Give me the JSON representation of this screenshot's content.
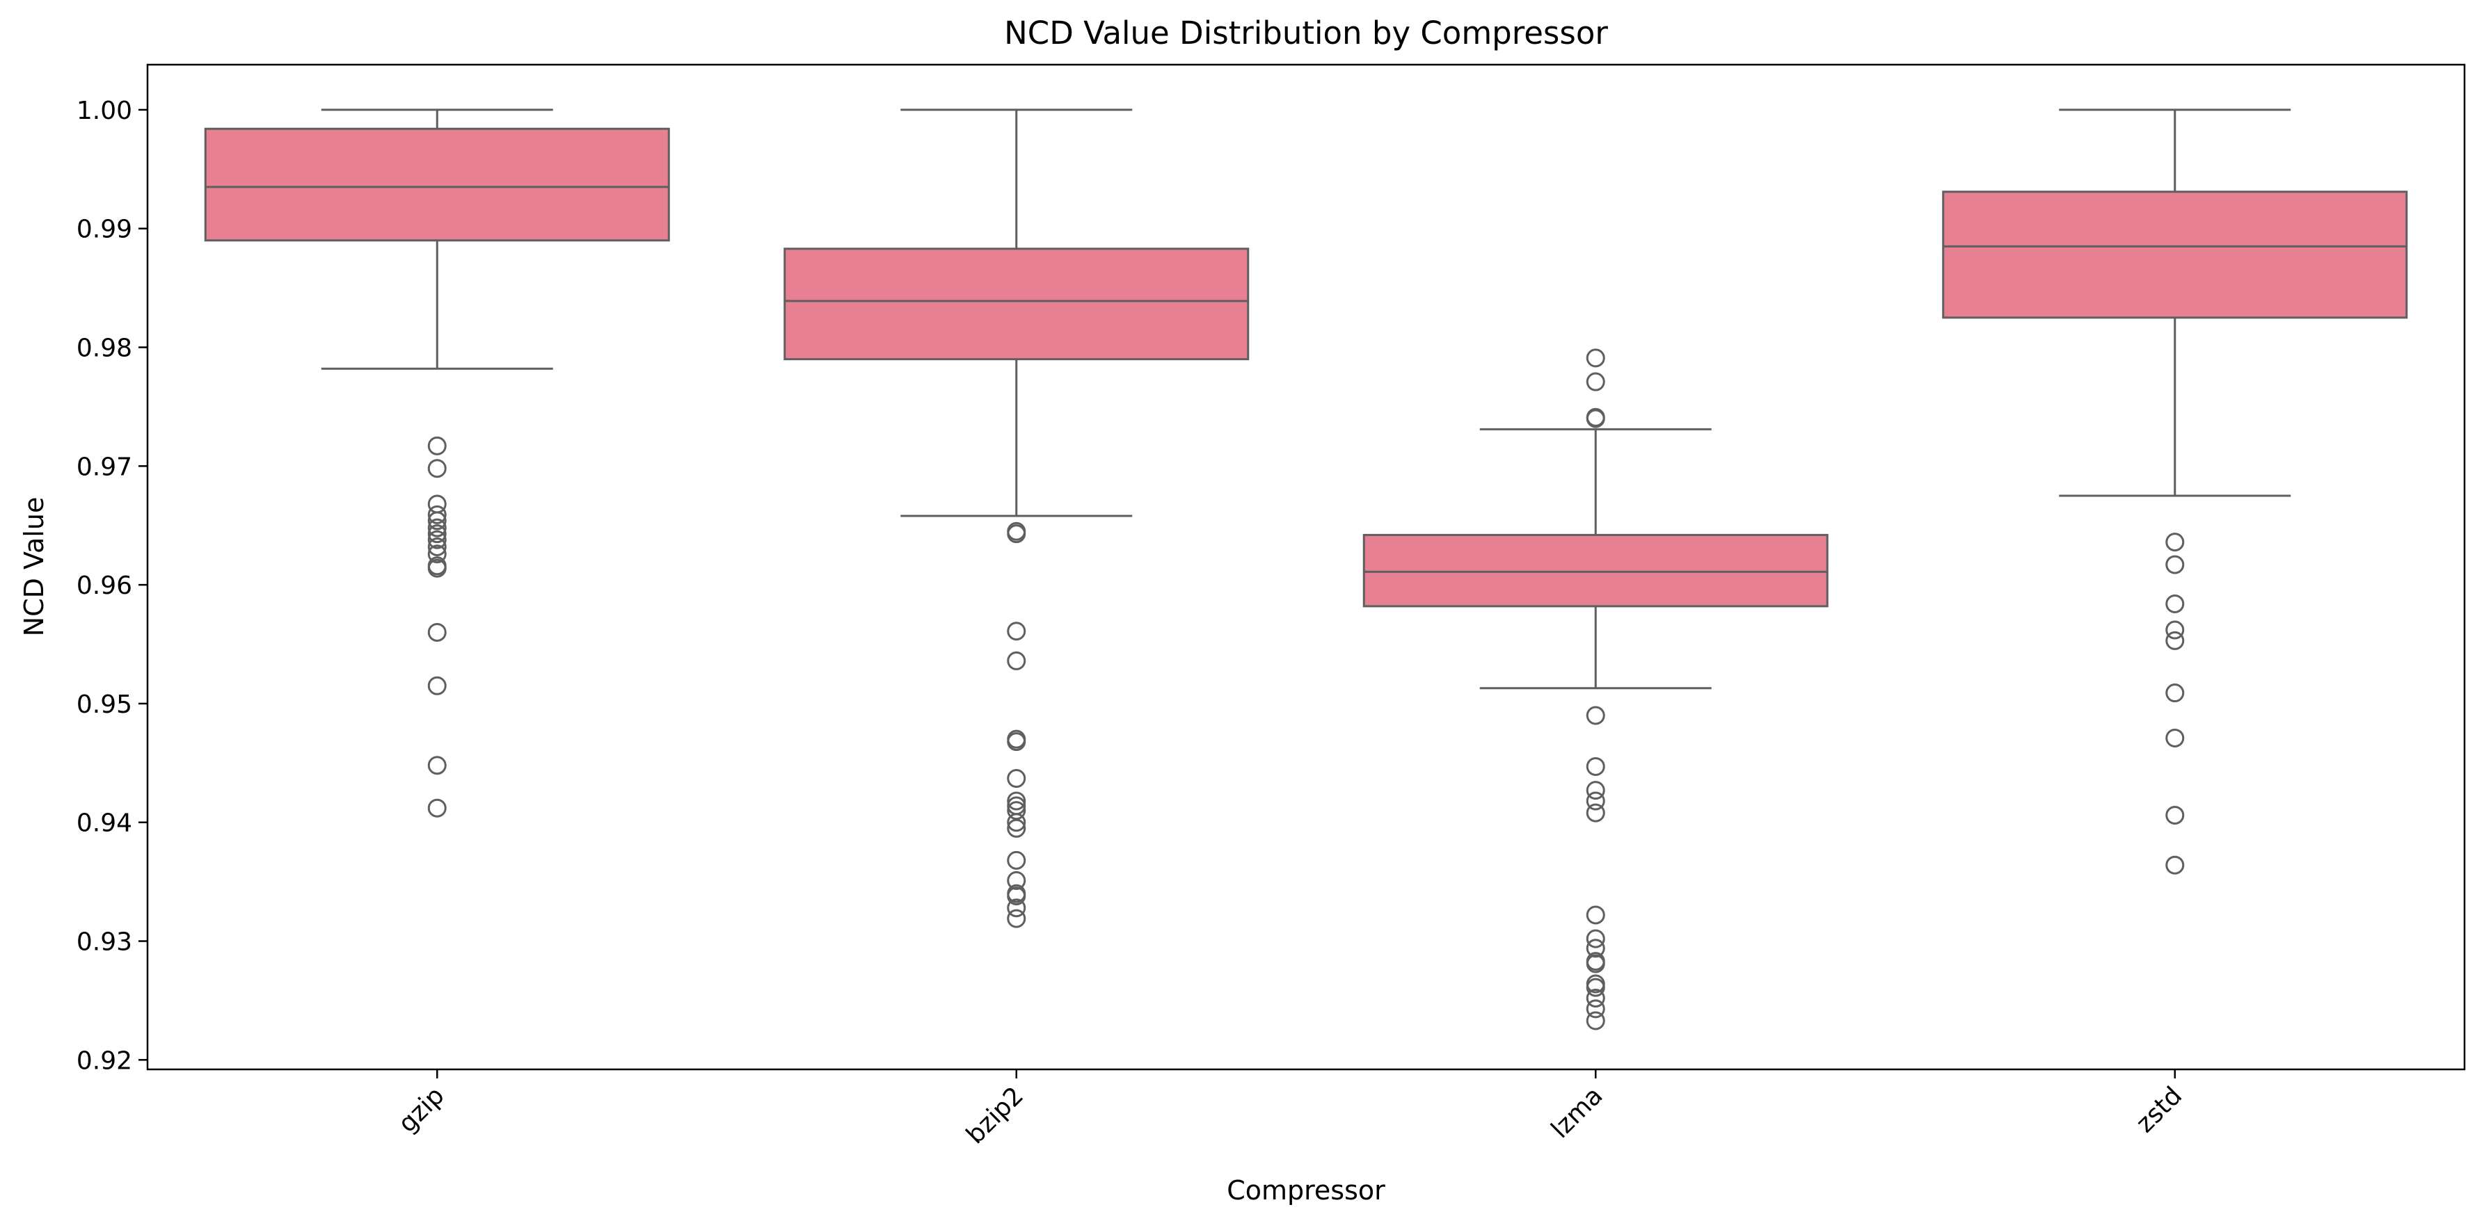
{
  "chart_data": {
    "type": "box",
    "title": "NCD Value Distribution by Compressor",
    "xlabel": "Compressor",
    "ylabel": "NCD Value",
    "ylim": [
      0.9192,
      1.0038
    ],
    "y_ticks": [
      0.92,
      0.93,
      0.94,
      0.95,
      0.96,
      0.97,
      0.98,
      0.99,
      1.0
    ],
    "y_tick_labels": [
      "0.92",
      "0.93",
      "0.94",
      "0.95",
      "0.96",
      "0.97",
      "0.98",
      "0.99",
      "1.00"
    ],
    "categories": [
      "gzip",
      "bzip2",
      "lzma",
      "zstd"
    ],
    "grid": false,
    "legend": "none",
    "box_color": "#e88093",
    "line_color": "#5f5f5f",
    "boxes": [
      {
        "category": "gzip",
        "whisker_low": 0.9782,
        "q1": 0.989,
        "median": 0.9935,
        "q3": 0.9984,
        "whisker_high": 1.0,
        "outliers": [
          0.9717,
          0.9698,
          0.9668,
          0.9659,
          0.9654,
          0.9648,
          0.9643,
          0.9638,
          0.9632,
          0.9626,
          0.9616,
          0.9614,
          0.956,
          0.9515,
          0.9448,
          0.9412
        ]
      },
      {
        "category": "bzip2",
        "whisker_low": 0.9658,
        "q1": 0.979,
        "median": 0.9839,
        "q3": 0.9883,
        "whisker_high": 1.0,
        "outliers": [
          0.9645,
          0.9643,
          0.9561,
          0.9536,
          0.947,
          0.9468,
          0.9437,
          0.9418,
          0.9414,
          0.941,
          0.94,
          0.9395,
          0.9368,
          0.9351,
          0.934,
          0.9338,
          0.9328,
          0.9319
        ]
      },
      {
        "category": "lzma",
        "whisker_low": 0.9513,
        "q1": 0.9582,
        "median": 0.9611,
        "q3": 0.9642,
        "whisker_high": 0.9731,
        "outliers": [
          0.9791,
          0.9771,
          0.9741,
          0.974,
          0.949,
          0.9447,
          0.9427,
          0.9418,
          0.9408,
          0.9322,
          0.9302,
          0.9294,
          0.9283,
          0.9281,
          0.9264,
          0.9261,
          0.9252,
          0.9243,
          0.9233
        ]
      },
      {
        "category": "zstd",
        "whisker_low": 0.9675,
        "q1": 0.9825,
        "median": 0.9885,
        "q3": 0.9931,
        "whisker_high": 1.0,
        "outliers": [
          0.9636,
          0.9617,
          0.9584,
          0.9562,
          0.9553,
          0.9509,
          0.9471,
          0.9406,
          0.9364
        ]
      }
    ]
  }
}
